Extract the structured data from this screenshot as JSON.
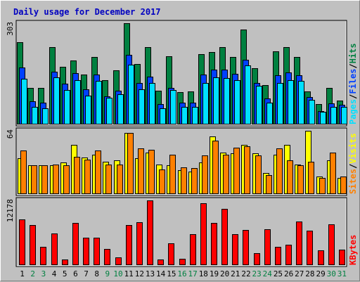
{
  "chart_data": {
    "type": "bar",
    "title": "Daily usage for December 2017",
    "colors": {
      "hits": "#008040",
      "files": "#0040FF",
      "pages": "#00E0FF",
      "visits": "#FFFF00",
      "sites": "#FF8000",
      "kbytes": "#FF0000",
      "title": "#0000C0",
      "weekend_label": "#008040",
      "weekday_label": "#000000",
      "background": "#C0C0C0",
      "plot": "#C0C0C0"
    },
    "days": [
      "1",
      "2",
      "3",
      "4",
      "5",
      "6",
      "7",
      "8",
      "9",
      "10",
      "11",
      "12",
      "13",
      "14",
      "15",
      "16",
      "17",
      "18",
      "19",
      "20",
      "21",
      "22",
      "23",
      "24",
      "25",
      "26",
      "27",
      "28",
      "29",
      "30",
      "31"
    ],
    "weekend_days": [
      2,
      3,
      9,
      10,
      16,
      17,
      23,
      24,
      30,
      31
    ],
    "panels": [
      {
        "id": "hits-files-pages",
        "ymax_label": "303",
        "ymax": 303,
        "legend": [
          {
            "label": "Hits",
            "color": "#008040"
          },
          {
            "label": "Files",
            "color": "#0040FF"
          },
          {
            "label": "Pages",
            "color": "#00E0FF"
          }
        ],
        "series": [
          {
            "name": "Hits",
            "color": "#008040",
            "values": [
              246,
              110,
              110,
              232,
              172,
              191,
              149,
              201,
              132,
              161,
              303,
              180,
              232,
              100,
              205,
              97,
              99,
              211,
              216,
              231,
              202,
              284,
              169,
              117,
              218,
              232,
              202,
              99,
              61,
              109,
              72
            ]
          },
          {
            "name": "Files",
            "color": "#0040FF",
            "values": [
              171,
              70,
              66,
              158,
              121,
              153,
              105,
              149,
              84,
              100,
              209,
              125,
              144,
              61,
              109,
              65,
              65,
              150,
              165,
              164,
              151,
              194,
              125,
              78,
              148,
              155,
              148,
              82,
              40,
              64,
              58
            ]
          },
          {
            "name": "Pages",
            "color": "#00E0FF",
            "values": [
              137,
              53,
              48,
              140,
              104,
              132,
              86,
              130,
              81,
              90,
              179,
              105,
              124,
              48,
              103,
              53,
              52,
              125,
              140,
              139,
              132,
              176,
              116,
              66,
              125,
              132,
              131,
              74,
              38,
              52,
              52
            ]
          }
        ]
      },
      {
        "id": "visits-sites",
        "ymax_label": "64",
        "ymax": 64,
        "legend": [
          {
            "label": "Visits",
            "color": "#FFFF00"
          },
          {
            "label": "Sites",
            "color": "#FF8000"
          }
        ],
        "series": [
          {
            "name": "Visits",
            "color": "#FFFF00",
            "values": [
              36,
              29,
              29,
              29,
              32,
              50,
              37,
              40,
              33,
              34,
              62,
              36,
              42,
              30,
              29,
              24,
              23,
              32,
              58,
              42,
              41,
              50,
              41,
              21,
              40,
              50,
              30,
              64,
              18,
              34,
              16
            ]
          },
          {
            "name": "Sites",
            "color": "#FF8000",
            "values": [
              44,
              29,
              29,
              30,
              29,
              38,
              35,
              44,
              30,
              30,
              62,
              46,
              45,
              25,
              40,
              27,
              26,
              39,
              54,
              40,
              47,
              48,
              39,
              19,
              46,
              34,
              29,
              33,
              16,
              42,
              18
            ]
          }
        ]
      },
      {
        "id": "kbytes",
        "ymax_label": "12178",
        "ymax": 12178,
        "legend": [
          {
            "label": "KBytes",
            "color": "#FF0000"
          }
        ],
        "series": [
          {
            "name": "KBytes",
            "color": "#FF0000",
            "values": [
              8600,
              7500,
              3500,
              6000,
              1100,
              7900,
              5200,
              5100,
              3100,
              1500,
              7600,
              8100,
              12178,
              1100,
              4100,
              1200,
              5800,
              11700,
              8000,
              10600,
              5800,
              6600,
              2300,
              6700,
              3500,
              3900,
              8200,
              6500,
              2800,
              7700,
              2900
            ]
          }
        ]
      }
    ]
  }
}
